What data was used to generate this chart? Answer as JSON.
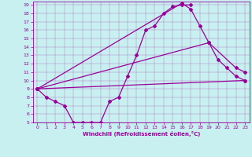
{
  "xlabel": "Windchill (Refroidissement éolien,°C)",
  "bg_color": "#c8f0f0",
  "line_color": "#990099",
  "xlim": [
    -0.5,
    23.5
  ],
  "ylim": [
    5,
    19.4
  ],
  "xticks": [
    0,
    1,
    2,
    3,
    4,
    5,
    6,
    7,
    8,
    9,
    10,
    11,
    12,
    13,
    14,
    15,
    16,
    17,
    18,
    19,
    20,
    21,
    22,
    23
  ],
  "yticks": [
    5,
    6,
    7,
    8,
    9,
    10,
    11,
    12,
    13,
    14,
    15,
    16,
    17,
    18,
    19
  ],
  "curve1_x": [
    0,
    1,
    2,
    3,
    4,
    5,
    6,
    7,
    8,
    9,
    10,
    11,
    12,
    13,
    14,
    15,
    16,
    17
  ],
  "curve1_y": [
    9,
    8,
    7.5,
    7,
    5,
    5,
    5,
    5,
    7.5,
    8,
    10.5,
    13,
    16,
    16.5,
    18,
    18.8,
    19,
    19
  ],
  "curve2_x": [
    0,
    16,
    17,
    18,
    19,
    20,
    21,
    22,
    23
  ],
  "curve2_y": [
    9,
    19.2,
    18.5,
    16.5,
    14.5,
    12.5,
    11.5,
    10.5,
    10
  ],
  "curve3_x": [
    0,
    19,
    22,
    23
  ],
  "curve3_y": [
    9,
    14.5,
    11.5,
    11
  ],
  "curve4_x": [
    0,
    23
  ],
  "curve4_y": [
    9,
    10
  ]
}
